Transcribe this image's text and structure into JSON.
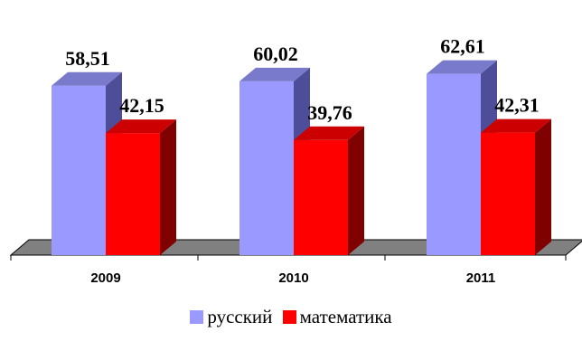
{
  "chart_data": {
    "type": "bar",
    "categories": [
      "2009",
      "2010",
      "2011"
    ],
    "series": [
      {
        "name": "русский",
        "values": [
          58.51,
          60.02,
          62.61
        ],
        "labels": [
          "58,51",
          "60,02",
          "62,61"
        ]
      },
      {
        "name": "математика",
        "values": [
          42.15,
          39.76,
          42.31
        ],
        "labels": [
          "42,15",
          "39,76",
          "42,31"
        ]
      }
    ],
    "ylim": [
      0,
      75
    ],
    "grid": false,
    "legend_position": "bottom",
    "three_d": true,
    "colors": {
      "русский": {
        "front": "#9999ff",
        "side": "#4d4d99",
        "top": "#7a7acc"
      },
      "математика": {
        "front": "#ff0000",
        "side": "#800000",
        "top": "#cc0000"
      },
      "floor": "#808080"
    }
  }
}
